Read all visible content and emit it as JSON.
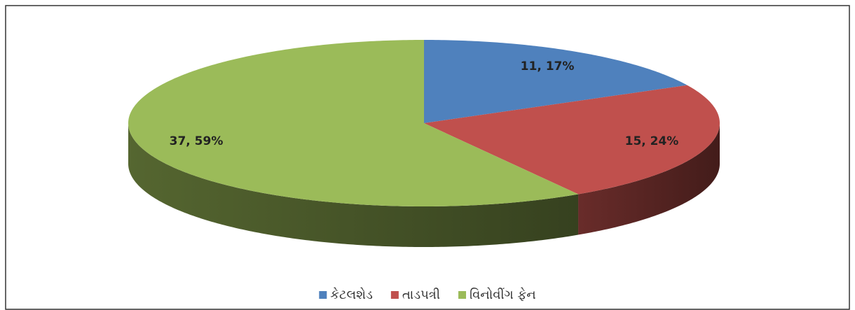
{
  "chart_data": {
    "type": "pie3d",
    "categories": [
      "કેટલશેડ",
      "તાડપત્રી",
      "વિનોવીંગ ફેન"
    ],
    "values": [
      11,
      15,
      37
    ],
    "value_labels": [
      "11, 17%",
      "15, 24%",
      "37, 59%"
    ],
    "colors": [
      "#4f81bd",
      "#c0504d",
      "#9bbb59"
    ],
    "legend": "bottom"
  }
}
